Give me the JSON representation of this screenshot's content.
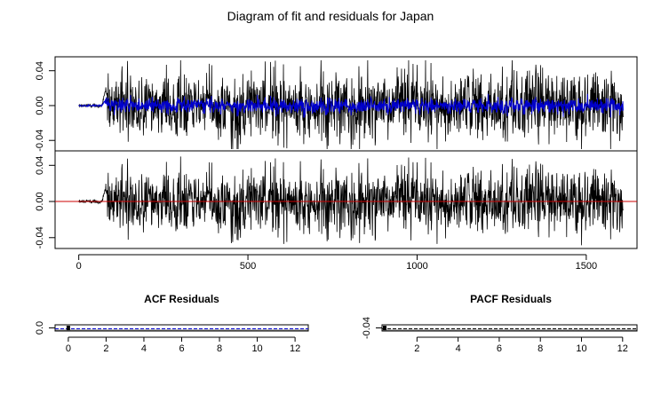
{
  "title": "Diagram of fit and residuals for Japan",
  "chart_data": [
    {
      "type": "line",
      "panel": "fit",
      "xlim": [
        -70,
        1650
      ],
      "ylim": [
        -0.052,
        0.056
      ],
      "yticks": [
        0.04,
        0.0,
        -0.04
      ],
      "ytick_labels": [
        "0.04",
        "0.00",
        "-0.04"
      ],
      "series": [
        {
          "color": "#000000",
          "kind": "observed",
          "n": 1610,
          "quiet_until": 80,
          "quiet_level": 0.003,
          "amplitude": 0.018
        },
        {
          "color": "#0000cc",
          "kind": "fitted",
          "n": 1610,
          "quiet_level": 0.002,
          "amplitude": 0.004
        }
      ]
    },
    {
      "type": "line",
      "panel": "residuals",
      "xlim": [
        -70,
        1650
      ],
      "ylim": [
        -0.052,
        0.056
      ],
      "yticks": [
        0.04,
        0.0,
        -0.04
      ],
      "ytick_labels": [
        "0.04",
        "0.00",
        "-0.04"
      ],
      "xticks": [
        0,
        500,
        1000,
        1500
      ],
      "xtick_labels": [
        "0",
        "500",
        "1000",
        "1500"
      ],
      "hline": {
        "y": 0,
        "color": "#cc0000"
      },
      "series": [
        {
          "color": "#000000",
          "kind": "residual",
          "n": 1610,
          "quiet_until": 80,
          "amplitude": 0.018
        }
      ]
    },
    {
      "type": "bar",
      "panel": "acf",
      "title": "ACF Residuals",
      "xlim": [
        -0.7,
        12.7
      ],
      "xticks": [
        0,
        2,
        4,
        6,
        8,
        10,
        12
      ],
      "xtick_labels": [
        "0",
        "2",
        "4",
        "6",
        "8",
        "10",
        "12"
      ],
      "ytick_labels": [
        "0.0"
      ],
      "lag0_value": 1.0,
      "ci_color": "#0000cc"
    },
    {
      "type": "bar",
      "panel": "pacf",
      "title": "PACF Residuals",
      "xlim": [
        0.3,
        12.7
      ],
      "xticks": [
        2,
        4,
        6,
        8,
        10,
        12
      ],
      "xtick_labels": [
        "2",
        "4",
        "6",
        "8",
        "10",
        "12"
      ],
      "ytick_labels": [
        "-0.04"
      ],
      "ci_color": "#000000"
    }
  ]
}
